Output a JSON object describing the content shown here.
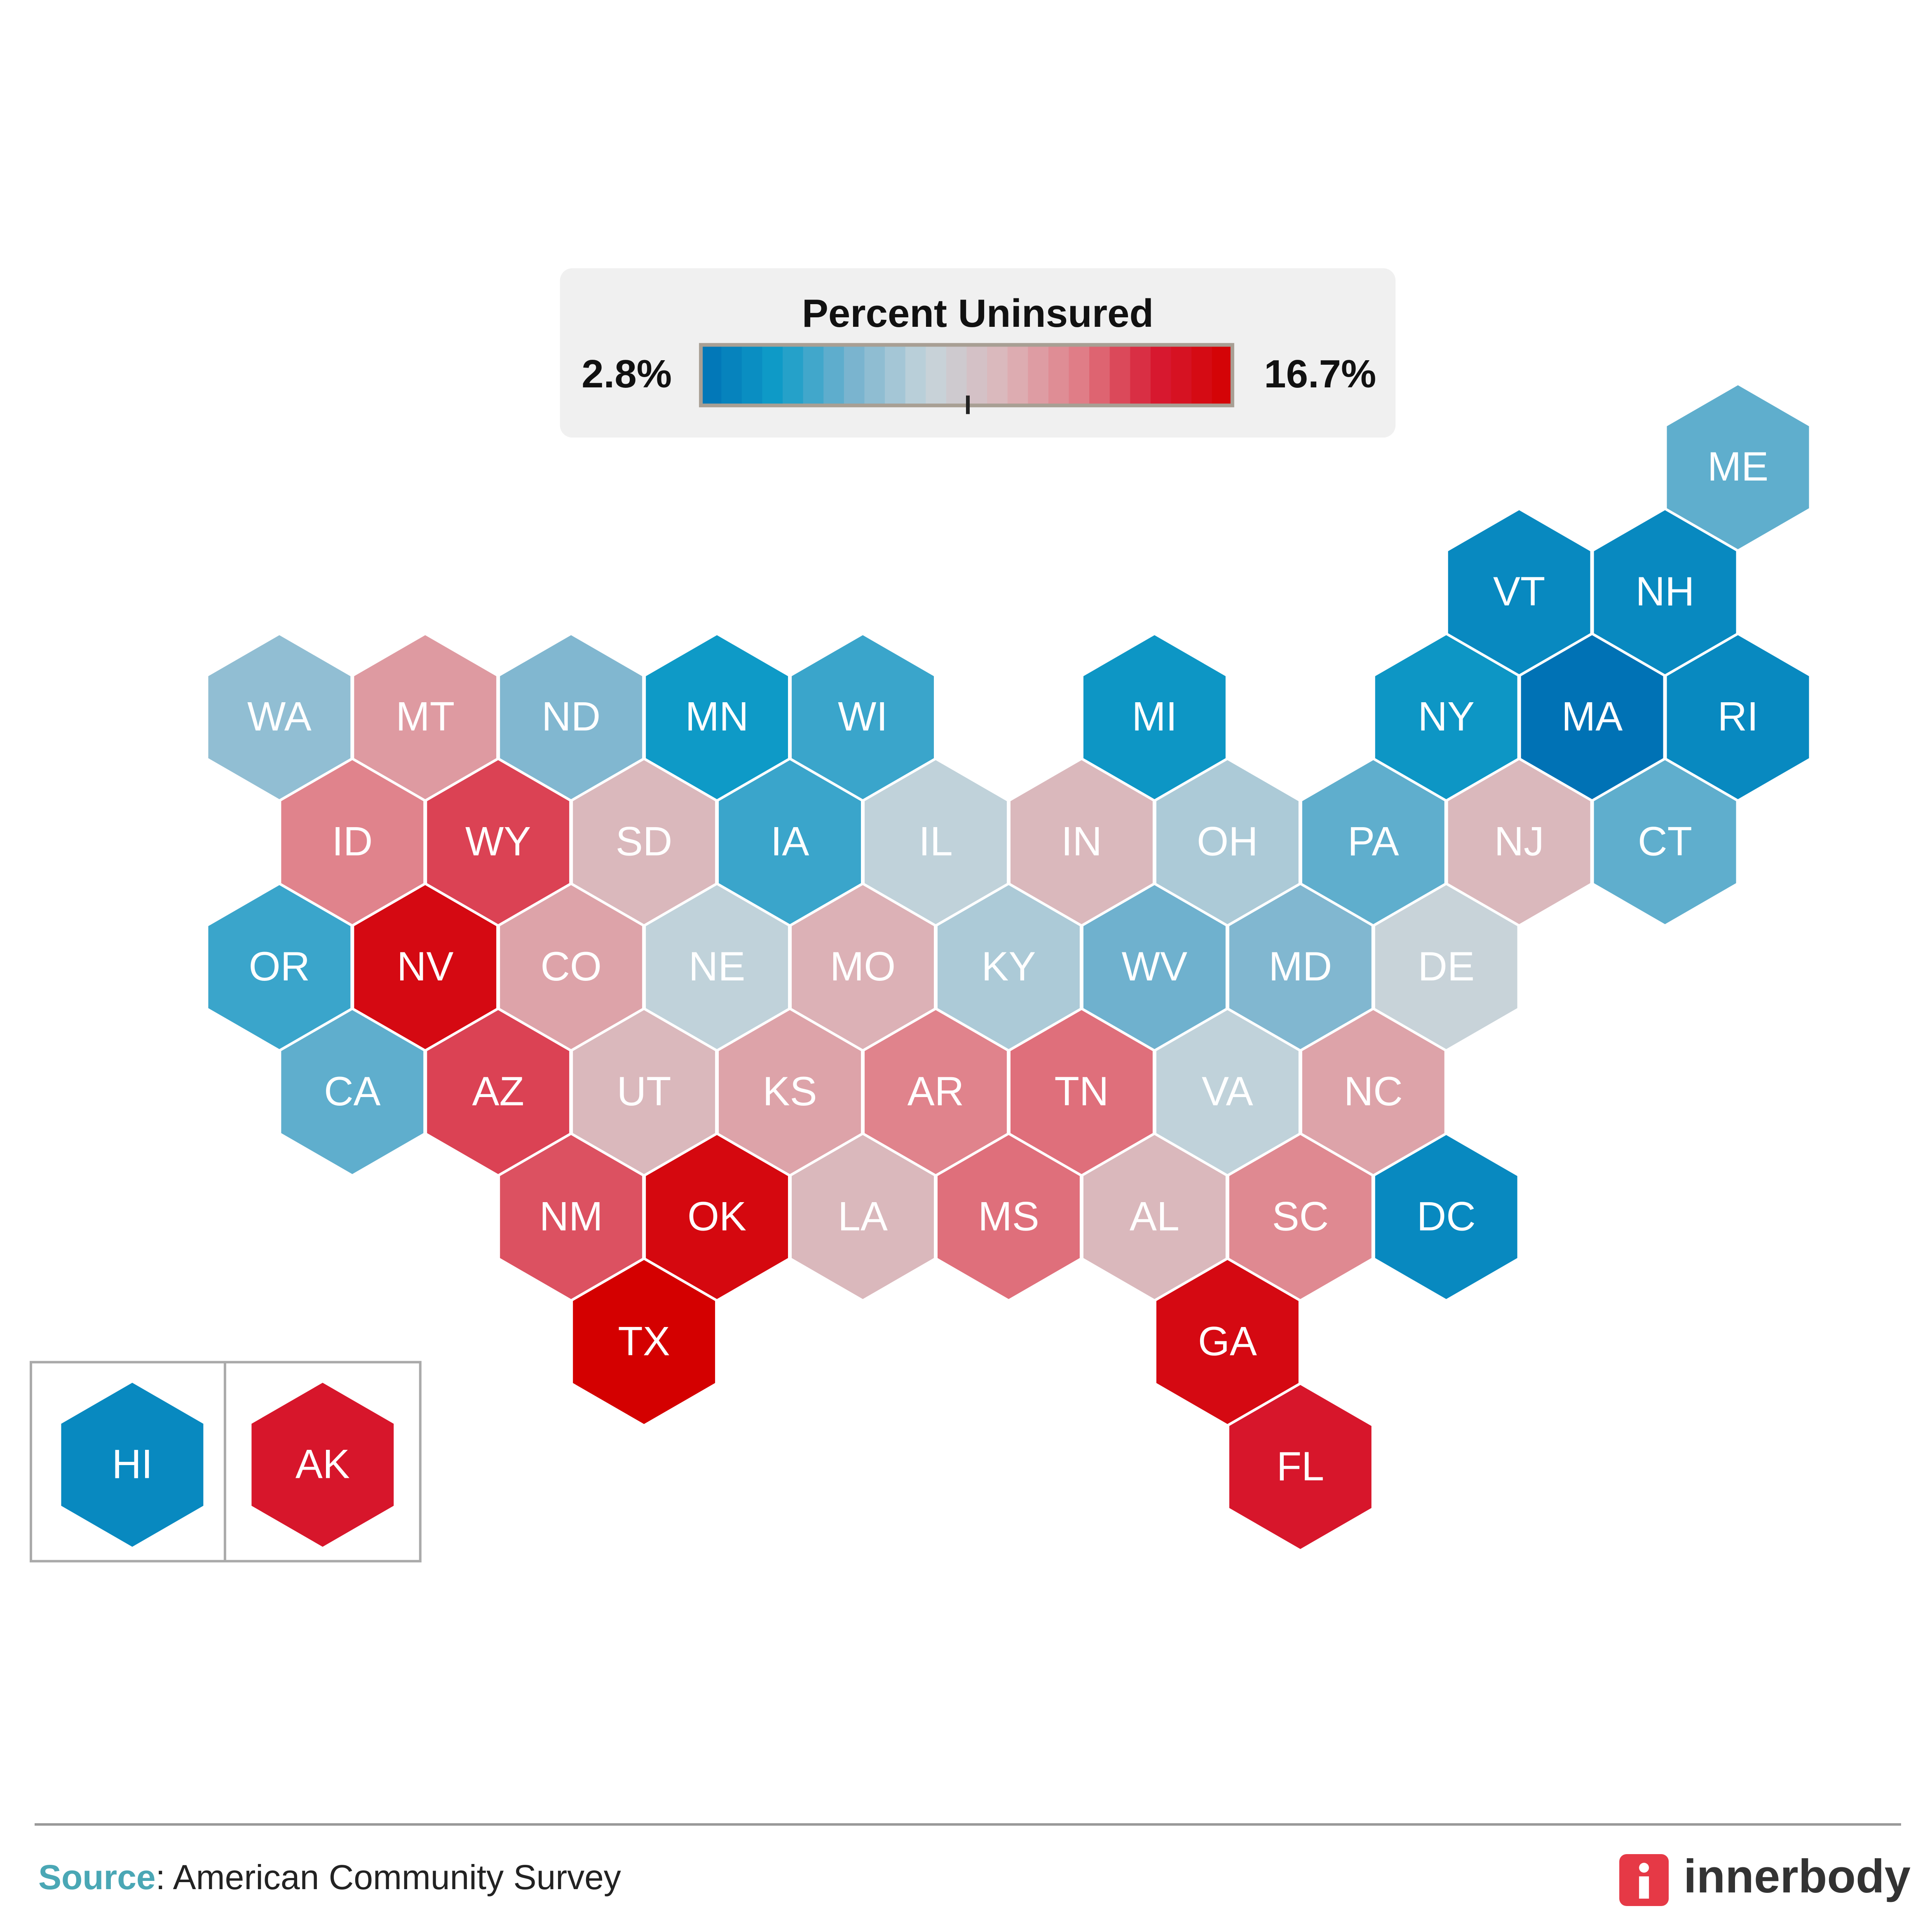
{
  "chart_data": {
    "type": "hexmap",
    "legend": {
      "title": "Percent  Uninsured",
      "min": {
        "value": 2.8,
        "label": "2.8%"
      },
      "max": {
        "value": 16.7,
        "label": "16.7%"
      }
    },
    "colorscale": [
      "#0072b5",
      "#0f9cc8",
      "#78b3cf",
      "#c6d5db",
      "#dcb6ba",
      "#e07c86",
      "#d71a32",
      "#d40000"
    ],
    "states": [
      {
        "label": "ME",
        "value": 6.3
      },
      {
        "label": "VT",
        "value": 3.9
      },
      {
        "label": "NH",
        "value": 3.9
      },
      {
        "label": "WA",
        "value": 7.4
      },
      {
        "label": "MT",
        "value": 11.7
      },
      {
        "label": "ND",
        "value": 7.0
      },
      {
        "label": "MN",
        "value": 4.7
      },
      {
        "label": "WI",
        "value": 5.6
      },
      {
        "label": "MI",
        "value": 4.5
      },
      {
        "label": "NY",
        "value": 4.5
      },
      {
        "label": "MA",
        "value": 2.8
      },
      {
        "label": "RI",
        "value": 3.9
      },
      {
        "label": "ID",
        "value": 12.5
      },
      {
        "label": "WY",
        "value": 13.9
      },
      {
        "label": "SD",
        "value": 10.6
      },
      {
        "label": "IA",
        "value": 5.6
      },
      {
        "label": "IL",
        "value": 8.6
      },
      {
        "label": "IN",
        "value": 10.6
      },
      {
        "label": "OH",
        "value": 8.1
      },
      {
        "label": "PA",
        "value": 6.3
      },
      {
        "label": "NJ",
        "value": 10.6
      },
      {
        "label": "CT",
        "value": 6.3
      },
      {
        "label": "OR",
        "value": 5.6
      },
      {
        "label": "NV",
        "value": 16.0
      },
      {
        "label": "CO",
        "value": 11.4
      },
      {
        "label": "NE",
        "value": 8.6
      },
      {
        "label": "MO",
        "value": 10.9
      },
      {
        "label": "KY",
        "value": 8.1
      },
      {
        "label": "WV",
        "value": 6.6
      },
      {
        "label": "MD",
        "value": 7.0
      },
      {
        "label": "DE",
        "value": 8.9
      },
      {
        "label": "CA",
        "value": 6.3
      },
      {
        "label": "AZ",
        "value": 13.9
      },
      {
        "label": "UT",
        "value": 10.6
      },
      {
        "label": "KS",
        "value": 11.4
      },
      {
        "label": "AR",
        "value": 12.5
      },
      {
        "label": "TN",
        "value": 13.0
      },
      {
        "label": "VA",
        "value": 8.6
      },
      {
        "label": "NC",
        "value": 11.4
      },
      {
        "label": "NM",
        "value": 13.6
      },
      {
        "label": "OK",
        "value": 16.1
      },
      {
        "label": "LA",
        "value": 10.6
      },
      {
        "label": "MS",
        "value": 13.0
      },
      {
        "label": "AL",
        "value": 10.6
      },
      {
        "label": "SC",
        "value": 12.3
      },
      {
        "label": "DC",
        "value": 3.9
      },
      {
        "label": "TX",
        "value": 16.7
      },
      {
        "label": "GA",
        "value": 16.0
      },
      {
        "label": "FL",
        "value": 15.0
      },
      {
        "label": "HI",
        "value": 3.9
      },
      {
        "label": "AK",
        "value": 15.0
      }
    ],
    "source": {
      "label": "Source",
      "text": ": American Community Survey"
    },
    "brand": "innerbody"
  }
}
